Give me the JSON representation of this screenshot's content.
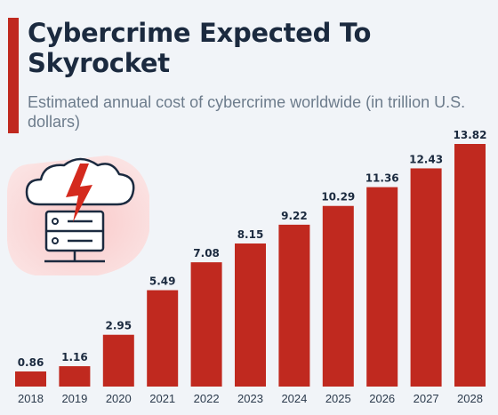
{
  "header": {
    "title": "Cybercrime Expected To Skyrocket",
    "subtitle": "Estimated annual cost of cybercrime worldwide (in trillion U.S. dollars)"
  },
  "colors": {
    "bar": "#c0291f",
    "title": "#1b2a3f",
    "subtitle": "#6d7c8c",
    "background": "#f1f4f8"
  },
  "illustration": {
    "icon": "cloud-server-lightning-icon"
  },
  "chart_data": {
    "type": "bar",
    "categories": [
      "2018",
      "2019",
      "2020",
      "2021",
      "2022",
      "2023",
      "2024",
      "2025",
      "2026",
      "2027",
      "2028"
    ],
    "values": [
      0.86,
      1.16,
      2.95,
      5.49,
      7.08,
      8.15,
      9.22,
      10.29,
      11.36,
      12.43,
      13.82
    ],
    "value_labels": [
      "0.86",
      "1.16",
      "2.95",
      "5.49",
      "7.08",
      "8.15",
      "9.22",
      "10.29",
      "11.36",
      "12.43",
      "13.82"
    ],
    "ylim": [
      0,
      13.82
    ],
    "grid": false,
    "legend": "none"
  }
}
